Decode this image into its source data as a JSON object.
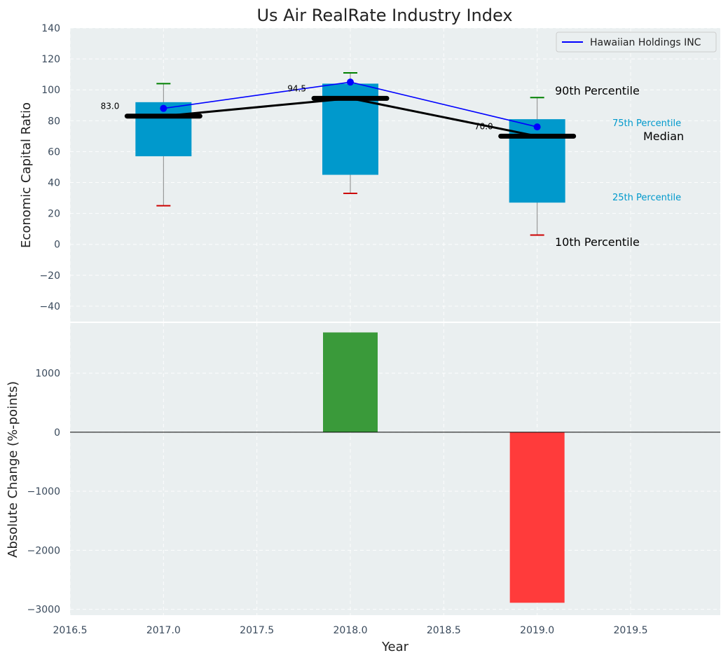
{
  "chart_data": [
    {
      "type": "box",
      "title": "Us Air RealRate Industry Index",
      "xlabel": "",
      "ylabel": "Economic Capital Ratio",
      "xlim": [
        2016.5,
        2019.98
      ],
      "ylim": [
        -50,
        140
      ],
      "yticks": [
        -40,
        -20,
        0,
        20,
        40,
        60,
        80,
        100,
        120,
        140
      ],
      "ytick_labels": [
        "−40",
        "−20",
        "0",
        "20",
        "40",
        "60",
        "80",
        "100",
        "120",
        "140"
      ],
      "years": [
        2017,
        2018,
        2019
      ],
      "p10": [
        25,
        33,
        6
      ],
      "p25": [
        57,
        45,
        27
      ],
      "median": [
        83.0,
        94.5,
        70.0
      ],
      "median_labels": [
        "83.0",
        "94.5",
        "70.0"
      ],
      "p75": [
        92,
        104,
        81
      ],
      "p90": [
        104,
        111,
        95
      ],
      "series": [
        {
          "name": "Hawaiian Holdings INC",
          "values": [
            88,
            105,
            76
          ],
          "color": "#0000ff"
        }
      ],
      "legend": {
        "position": "top-right",
        "label": "Hawaiian Holdings INC"
      },
      "percentile_labels": {
        "p90": "90th Percentile",
        "p75": "75th Percentile",
        "median": "Median",
        "p25": "25th Percentile",
        "p10": "10th Percentile"
      },
      "colors": {
        "box": "#0099cc",
        "p90_cap": "#008000",
        "p10_cap": "#cc0000",
        "median": "#000000",
        "background": "#eaeff0"
      }
    },
    {
      "type": "bar",
      "xlabel": "Year",
      "ylabel": "Absolute Change (%-points)",
      "xlim": [
        2016.5,
        2019.98
      ],
      "ylim": [
        -3100,
        1850
      ],
      "yticks": [
        -3000,
        -2000,
        -1000,
        0,
        1000
      ],
      "ytick_labels": [
        "−3000",
        "−2000",
        "−1000",
        "0",
        "1000"
      ],
      "xticks": [
        2016.5,
        2017.0,
        2017.5,
        2018.0,
        2018.5,
        2019.0,
        2019.5
      ],
      "xtick_labels": [
        "2016.5",
        "2017.0",
        "2017.5",
        "2018.0",
        "2018.5",
        "2019.0",
        "2019.5"
      ],
      "categories": [
        2018,
        2019
      ],
      "values": [
        1690,
        -2890
      ],
      "colors": {
        "positive": "#3a9a3a",
        "negative": "#ff3b3b"
      }
    }
  ]
}
